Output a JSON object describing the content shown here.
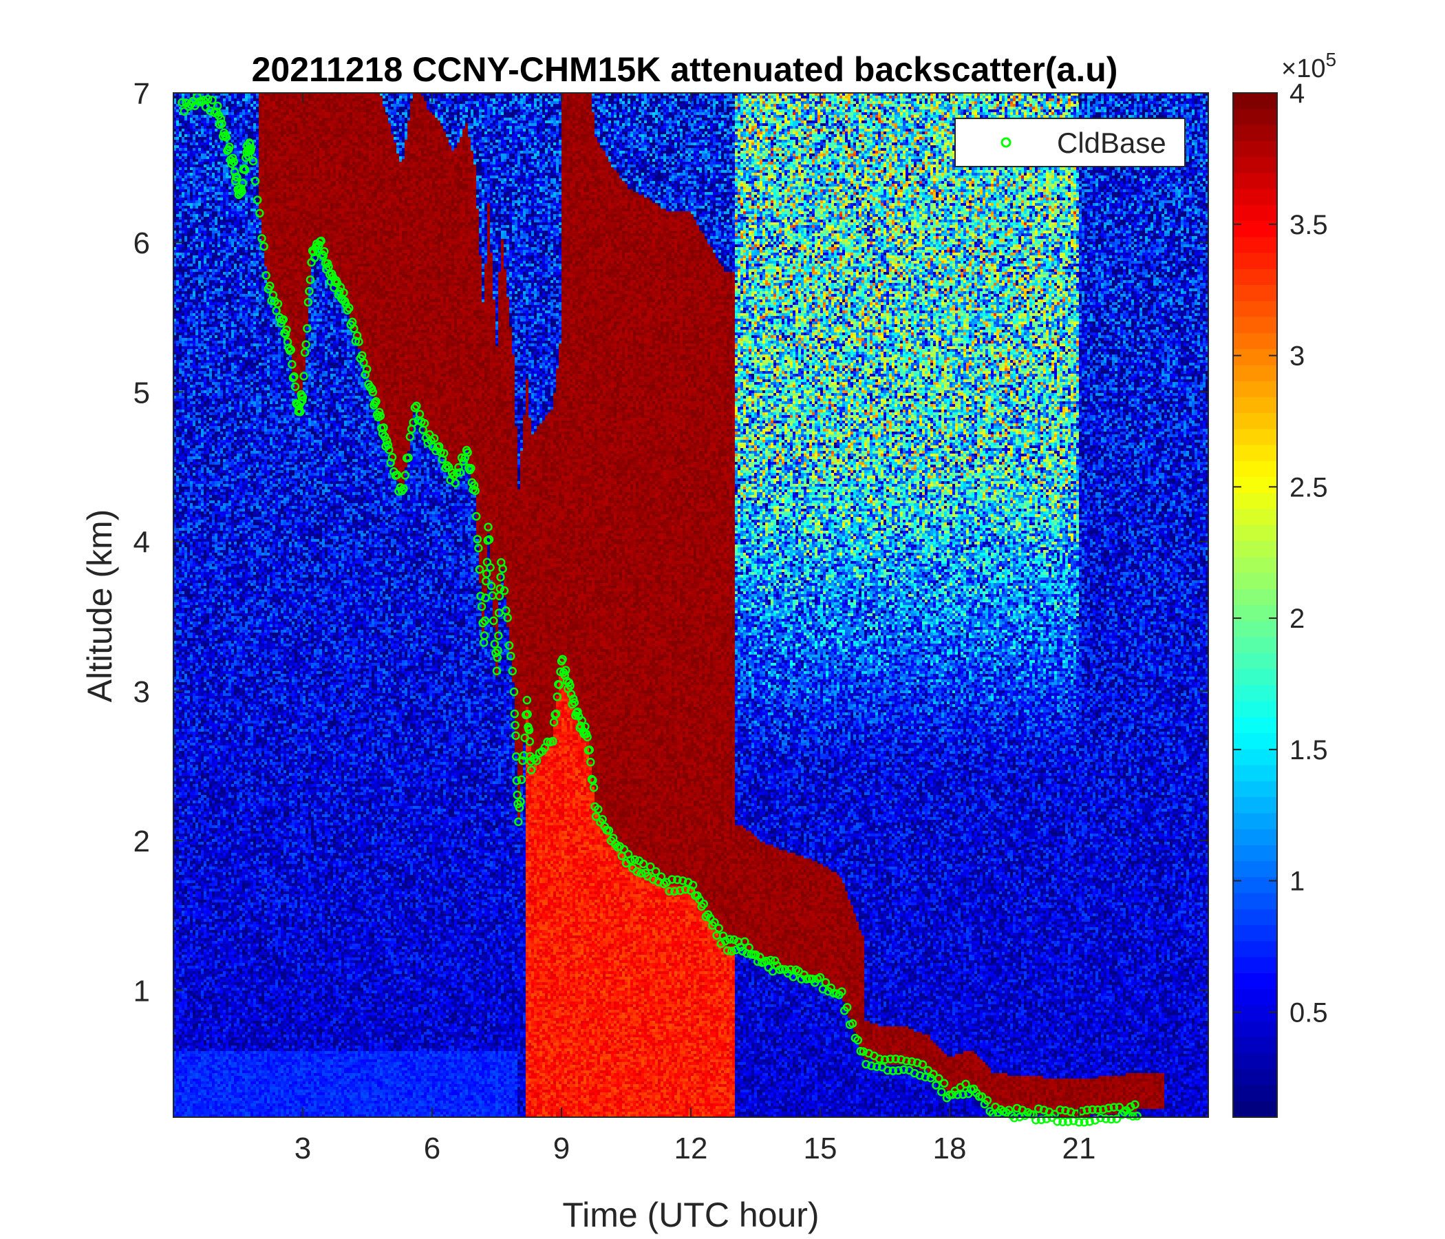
{
  "chart_data": {
    "type": "heatmap",
    "title": "20211218 CCNY-CHM15K attenuated backscatter(a.u)",
    "xlabel": "Time (UTC hour)",
    "ylabel": "Altitude (km)",
    "xlim": [
      0,
      24
    ],
    "ylim": [
      0.15,
      7
    ],
    "xticks": [
      3,
      6,
      9,
      12,
      15,
      18,
      21
    ],
    "yticks": [
      1,
      2,
      3,
      4,
      5,
      6,
      7
    ],
    "colorbar": {
      "range": [
        0.1,
        4
      ],
      "ticks": [
        0.5,
        1,
        1.5,
        2,
        2.5,
        3,
        3.5,
        4
      ],
      "exponent_label": "×10",
      "exponent": "5",
      "colormap": "jet"
    },
    "legend": {
      "position": "top-right",
      "entries": [
        {
          "label": "CldBase",
          "marker": "circle",
          "color": "#00ff00"
        }
      ]
    },
    "cloud_layer": {
      "description_values": "approximate cloud-base height (km) vs time (h)",
      "points": [
        [
          0.2,
          6.9
        ],
        [
          0.6,
          6.95
        ],
        [
          1.0,
          6.9
        ],
        [
          1.2,
          6.7
        ],
        [
          1.4,
          6.5
        ],
        [
          1.55,
          6.3
        ],
        [
          1.7,
          6.6
        ],
        [
          1.8,
          6.65
        ],
        [
          2.2,
          5.7
        ],
        [
          2.5,
          5.5
        ],
        [
          2.7,
          5.3
        ],
        [
          3.0,
          5.0
        ],
        [
          2.9,
          4.85
        ],
        [
          3.2,
          5.9
        ],
        [
          3.4,
          6.0
        ],
        [
          3.6,
          5.8
        ],
        [
          3.8,
          5.7
        ],
        [
          4.0,
          5.6
        ],
        [
          4.3,
          5.3
        ],
        [
          4.6,
          5.0
        ],
        [
          4.8,
          4.8
        ],
        [
          5.0,
          4.6
        ],
        [
          5.3,
          4.3
        ],
        [
          5.6,
          4.9
        ],
        [
          5.9,
          4.7
        ],
        [
          6.2,
          4.6
        ],
        [
          6.5,
          4.4
        ],
        [
          6.8,
          4.6
        ],
        [
          7.0,
          4.3
        ],
        [
          7.3,
          4.1
        ],
        [
          7.6,
          3.9
        ],
        [
          7.2,
          3.3
        ],
        [
          7.5,
          3.1
        ],
        [
          7.9,
          3.0
        ],
        [
          8.2,
          2.9
        ],
        [
          8.0,
          2.1
        ],
        [
          8.3,
          2.5
        ],
        [
          8.8,
          2.7
        ],
        [
          9.0,
          3.2
        ],
        [
          9.2,
          3.0
        ],
        [
          9.4,
          2.8
        ],
        [
          9.6,
          2.7
        ],
        [
          9.8,
          2.2
        ],
        [
          10.2,
          2.0
        ],
        [
          10.6,
          1.85
        ],
        [
          11.0,
          1.8
        ],
        [
          11.5,
          1.7
        ],
        [
          12.0,
          1.7
        ],
        [
          12.4,
          1.5
        ],
        [
          12.8,
          1.3
        ],
        [
          13.2,
          1.3
        ],
        [
          13.6,
          1.2
        ],
        [
          14.0,
          1.15
        ],
        [
          14.5,
          1.1
        ],
        [
          15.0,
          1.05
        ],
        [
          15.5,
          0.95
        ],
        [
          16.0,
          0.55
        ],
        [
          16.5,
          0.5
        ],
        [
          17.0,
          0.5
        ],
        [
          17.5,
          0.45
        ],
        [
          18.0,
          0.3
        ],
        [
          18.5,
          0.35
        ],
        [
          19.0,
          0.2
        ],
        [
          19.5,
          0.18
        ],
        [
          20.0,
          0.17
        ],
        [
          20.5,
          0.16
        ],
        [
          21.0,
          0.15
        ],
        [
          21.5,
          0.17
        ],
        [
          22.0,
          0.18
        ],
        [
          22.4,
          0.2
        ]
      ]
    }
  }
}
